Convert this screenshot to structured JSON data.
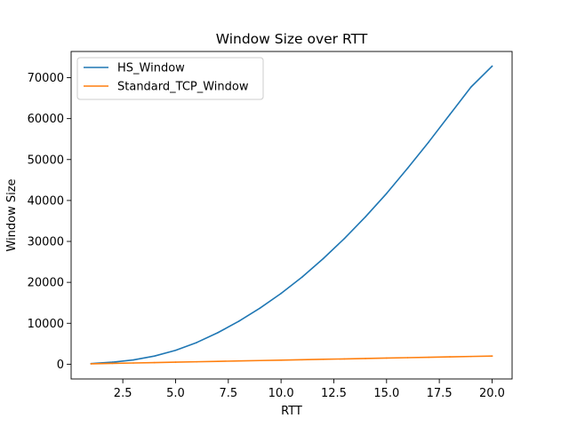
{
  "chart_data": {
    "type": "line",
    "title": "Window Size over RTT",
    "xlabel": "RTT",
    "ylabel": "Window Size",
    "xlim": [
      0.05,
      20.95
    ],
    "ylim": [
      -3600,
      76400
    ],
    "xticks": [
      2.5,
      5.0,
      7.5,
      10.0,
      12.5,
      15.0,
      17.5,
      20.0
    ],
    "xtick_labels": [
      "2.5",
      "5.0",
      "7.5",
      "10.0",
      "12.5",
      "15.0",
      "17.5",
      "20.0"
    ],
    "yticks": [
      0,
      10000,
      20000,
      30000,
      40000,
      50000,
      60000,
      70000
    ],
    "ytick_labels": [
      "0",
      "10000",
      "20000",
      "30000",
      "40000",
      "50000",
      "60000",
      "70000"
    ],
    "grid": false,
    "legend_position": "upper-left",
    "x": [
      1,
      2,
      3,
      4,
      5,
      6,
      7,
      8,
      9,
      10,
      11,
      12,
      13,
      14,
      15,
      16,
      17,
      18,
      19,
      20
    ],
    "series": [
      {
        "name": "HS_Window",
        "color": "#1f77b4",
        "values": [
          150,
          500,
          1050,
          2000,
          3400,
          5300,
          7700,
          10500,
          13700,
          17300,
          21300,
          25800,
          30700,
          36000,
          41700,
          47900,
          54300,
          61000,
          67700,
          72800
        ]
      },
      {
        "name": "Standard_TCP_Window",
        "color": "#ff7f0e",
        "values": [
          100,
          200,
          300,
          400,
          500,
          600,
          700,
          800,
          900,
          1000,
          1100,
          1200,
          1300,
          1400,
          1500,
          1600,
          1700,
          1800,
          1900,
          2000
        ]
      }
    ]
  }
}
